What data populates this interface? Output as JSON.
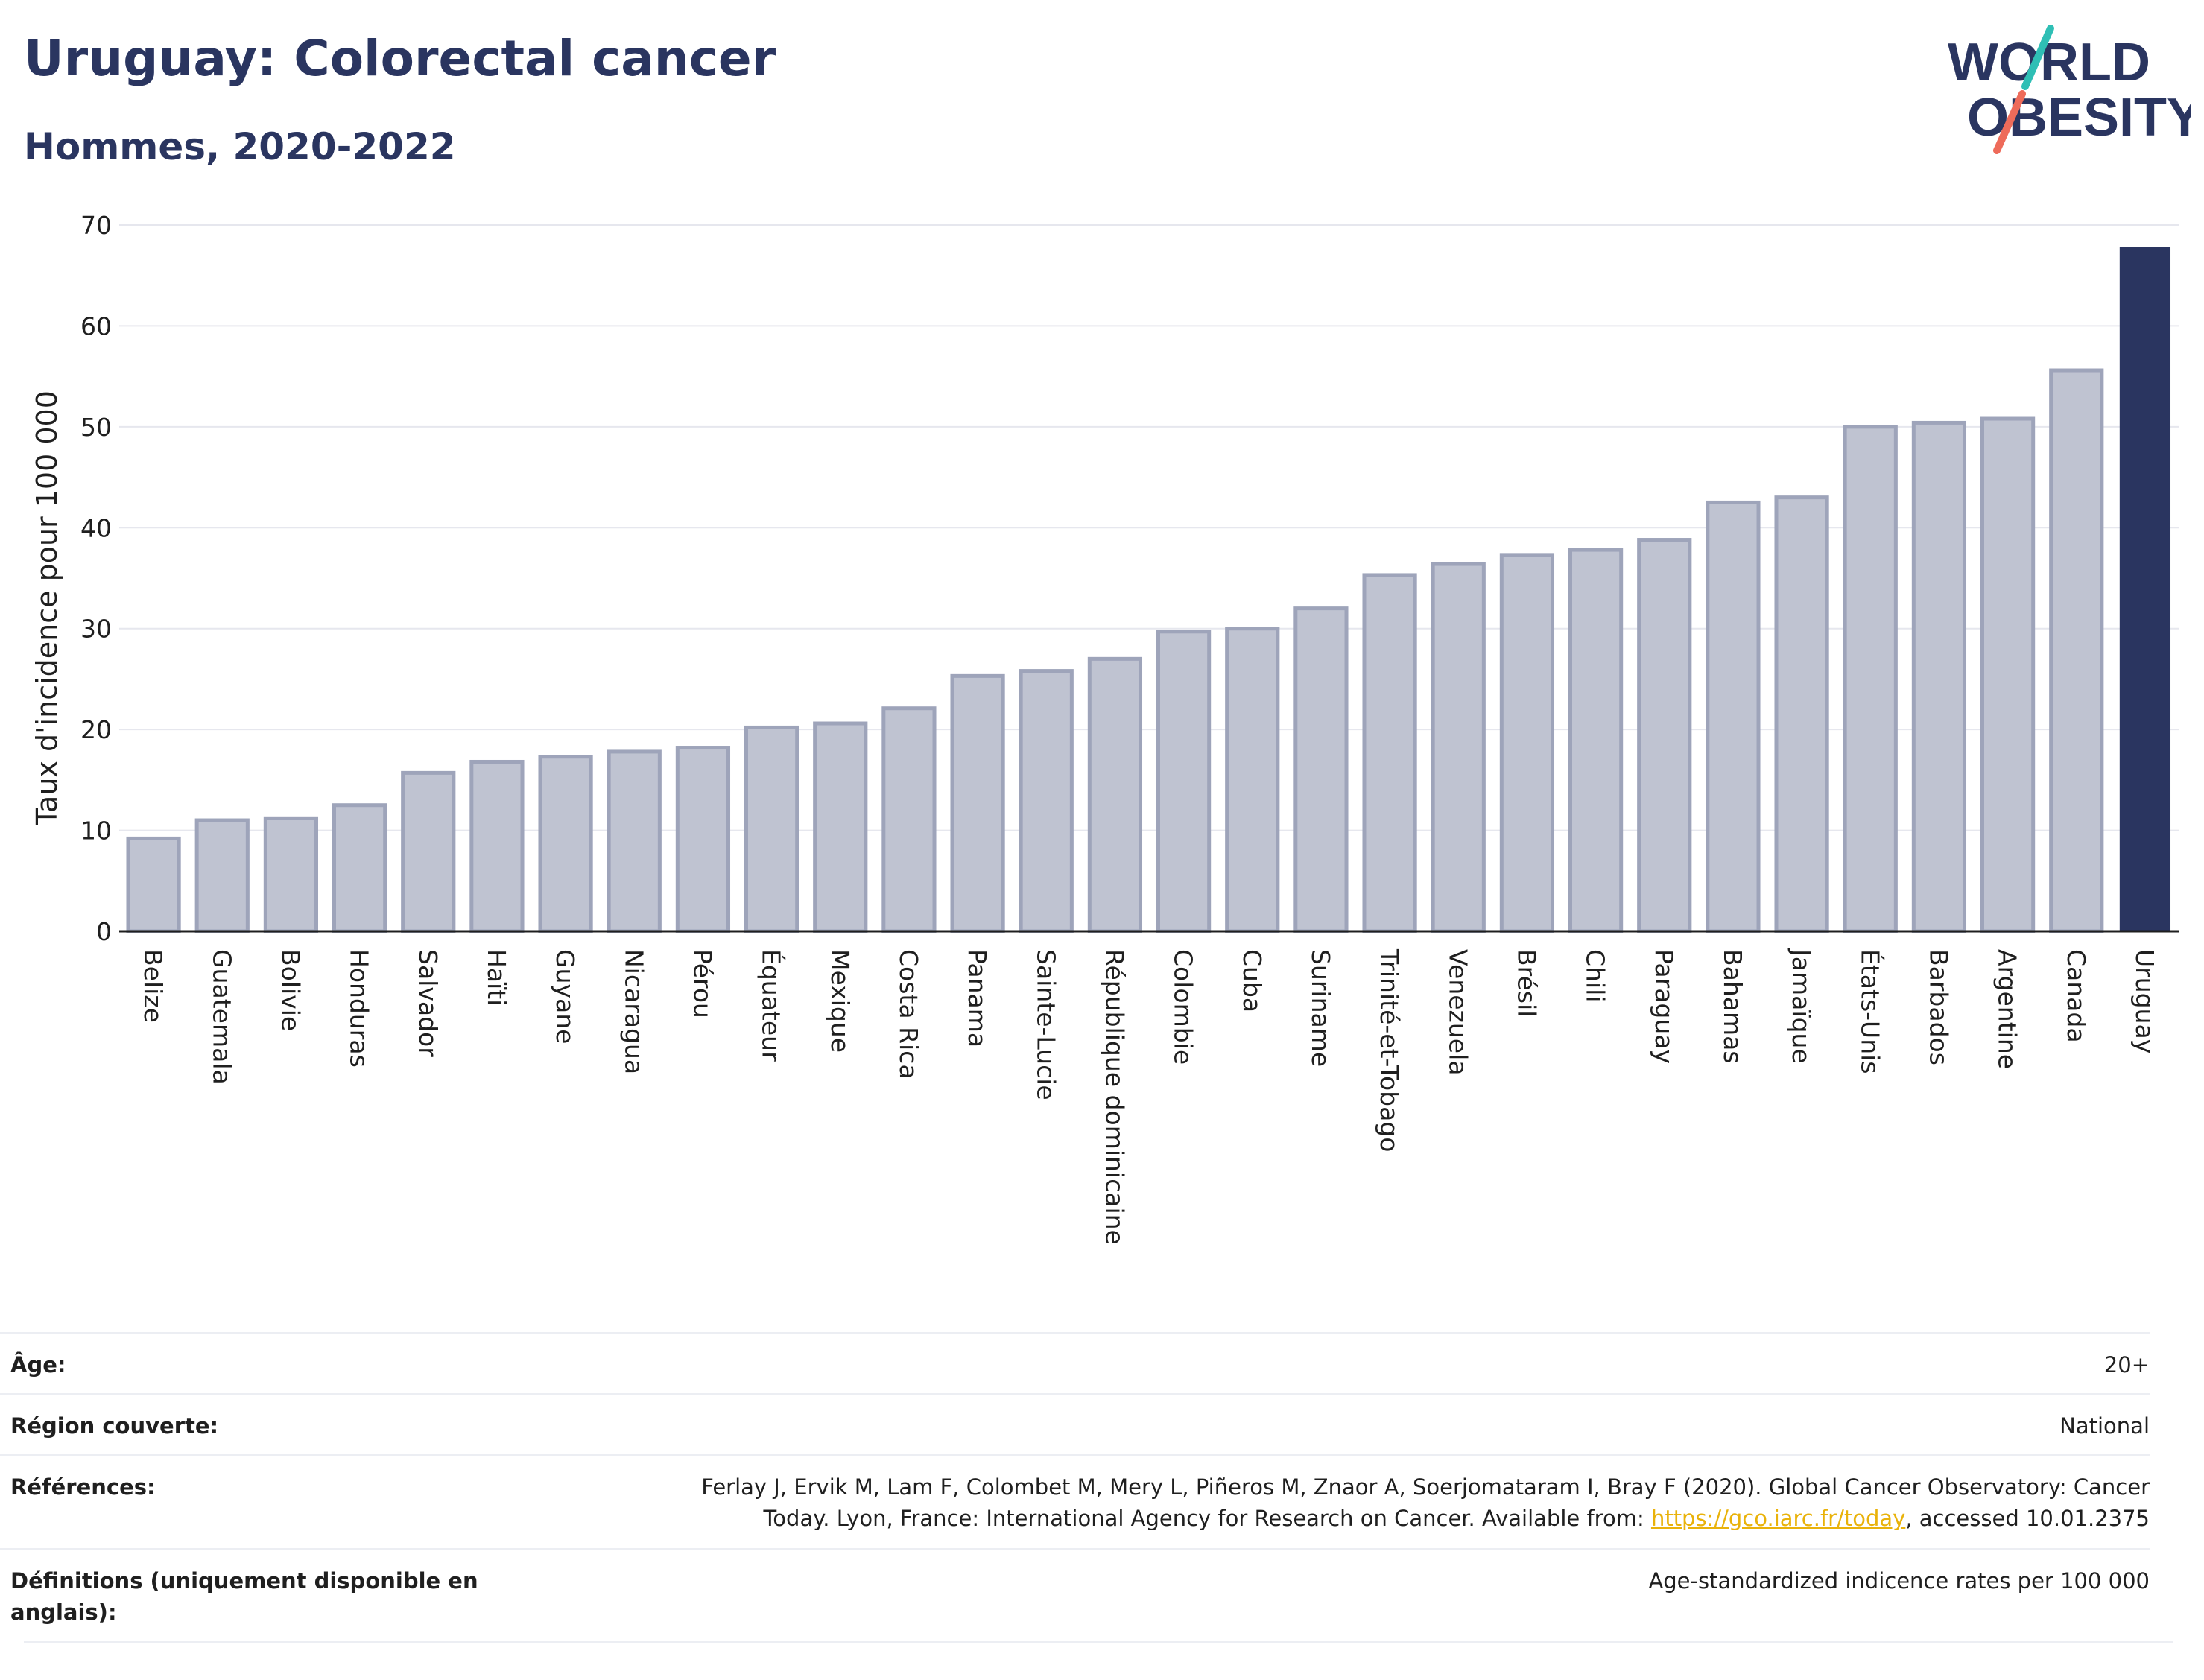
{
  "header": {
    "title": "Uruguay: Colorectal cancer",
    "subtitle": "Hommes, 2020-2022"
  },
  "logo": {
    "line1": "WORLD",
    "line2": "OBESITY",
    "colors": {
      "text": "#2a3560",
      "slash_teal": "#2fbfb5",
      "slash_coral": "#ee6b5a"
    }
  },
  "colors": {
    "bar_default": "#bfc3d1",
    "bar_default_stroke": "#9ea4ba",
    "bar_highlight": "#2a3560",
    "grid": "#e6e7ee",
    "axis": "#1f1f1f"
  },
  "chart_data": {
    "type": "bar",
    "title": "",
    "ylabel": "Taux d'incidence pour 100 000",
    "xlabel": "",
    "ylim": [
      0,
      70
    ],
    "yticks": [
      0,
      10,
      20,
      30,
      40,
      50,
      60,
      70
    ],
    "grid": true,
    "highlight": "Uruguay",
    "categories": [
      "Belize",
      "Guatemala",
      "Bolivie",
      "Honduras",
      "Salvador",
      "Haïti",
      "Guyane",
      "Nicaragua",
      "Pérou",
      "Équateur",
      "Mexique",
      "Costa Rica",
      "Panama",
      "Sainte-Lucie",
      "République dominicaine",
      "Colombie",
      "Cuba",
      "Suriname",
      "Trinité-et-Tobago",
      "Venezuela",
      "Brésil",
      "Chili",
      "Paraguay",
      "Bahamas",
      "Jamaïque",
      "États-Unis",
      "Barbados",
      "Argentine",
      "Canada",
      "Uruguay"
    ],
    "values": [
      9.2,
      11.0,
      11.2,
      12.5,
      15.7,
      16.8,
      17.3,
      17.8,
      18.2,
      20.2,
      20.6,
      22.1,
      25.3,
      25.8,
      27.0,
      29.7,
      30.0,
      32.0,
      35.3,
      36.4,
      37.3,
      37.8,
      38.8,
      42.5,
      43.0,
      50.0,
      50.4,
      50.8,
      55.6,
      67.8
    ]
  },
  "meta": {
    "age_label": "Âge:",
    "age_value": "20+",
    "region_label": "Région couverte:",
    "region_value": "National",
    "ref_label": "Références:",
    "ref_line1": "Ferlay J, Ervik M, Lam F, Colombet M, Mery L, Piñeros M, Znaor A, Soerjomataram I, Bray F (2020). Global Cancer Observatory: Cancer",
    "ref_line2_pre": "Today. Lyon, France: International Agency for Research on Cancer. Available from: ",
    "ref_link": "https://gco.iarc.fr/today",
    "ref_line2_post": ", accessed 10.01.2375",
    "def_label": "Définitions (uniquement disponible en anglais):",
    "def_value": "Age-standardized indicence rates per 100 000"
  }
}
